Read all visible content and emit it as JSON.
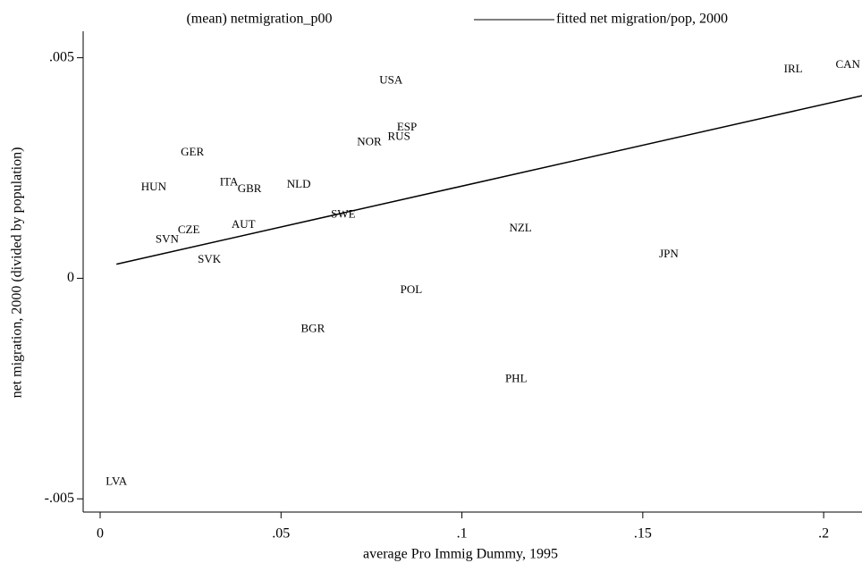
{
  "chart_data": {
    "type": "scatter",
    "x_label": "average Pro Immig Dummy, 1995",
    "y_label": "net migration, 2000 (divided by population)",
    "xlim": [
      -0.0047,
      0.2106
    ],
    "ylim": [
      -0.0053,
      0.0056
    ],
    "xticks": [
      0,
      {
        "value": 0.05,
        "label": ".05"
      },
      {
        "value": 0.1,
        "label": ".1"
      },
      {
        "value": 0.15,
        "label": ".15"
      },
      {
        "value": 0.2,
        "label": ".2"
      }
    ],
    "yticks": [
      {
        "value": -0.005,
        "label": "-.005"
      },
      0,
      {
        "value": 0.005,
        "label": ".005"
      }
    ],
    "series": [
      {
        "name": "(mean) netmigration_p00",
        "color": "#000000",
        "labels": [
          "USA",
          "IRL",
          "CAN",
          "ESP",
          "RUS",
          "NOR",
          "GER",
          "HUN",
          "ITA",
          "GBR",
          "NLD",
          "SWE",
          "NZL",
          "AUT",
          "CZE",
          "SVN",
          "SVK",
          "JPN",
          "POL",
          "BGR",
          "PHL",
          "LVA"
        ],
        "x": [
          0.0804,
          0.1916,
          0.2067,
          0.0848,
          0.0826,
          0.0744,
          0.0255,
          0.0148,
          0.0356,
          0.0413,
          0.0549,
          0.0672,
          0.1162,
          0.0396,
          0.0245,
          0.0185,
          0.0302,
          0.1572,
          0.086,
          0.0588,
          0.115,
          0.0045
        ],
        "values": [
          0.00448,
          0.00473,
          0.00483,
          0.00341,
          0.0032,
          0.00308,
          0.00284,
          0.00205,
          0.00217,
          0.00201,
          0.00211,
          0.00144,
          0.00112,
          0.0012,
          0.00108,
          0.00087,
          0.00041,
          0.00053,
          -0.00028,
          -0.00116,
          -0.00229,
          -0.00462
        ]
      },
      {
        "name": "fitted net migration/pop, 2000",
        "type": "line",
        "color": "#000000",
        "x": [
          0.0045,
          0.2106
        ],
        "values": [
          0.00032,
          0.00414
        ]
      }
    ]
  }
}
